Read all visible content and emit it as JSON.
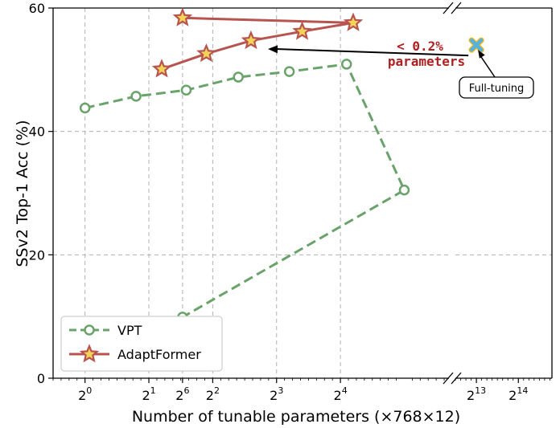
{
  "chart_data": {
    "type": "line",
    "xlabel": "Number of tunable parameters (×768×12)",
    "ylabel": "SSv2 Top-1 Acc (%)",
    "ylim": [
      0,
      60
    ],
    "yticks": [
      0,
      20,
      40,
      60
    ],
    "xlim_log2_main": [
      -0.5,
      5.7
    ],
    "xlim_log2_broken": [
      12.5,
      14.8
    ],
    "xticks_main": [
      {
        "base": "2",
        "exp": "0"
      },
      {
        "base": "2",
        "exp": "1"
      },
      {
        "base": "2",
        "exp": "2"
      },
      {
        "base": "2",
        "exp": "3"
      },
      {
        "base": "2",
        "exp": "4"
      },
      {
        "base": "2",
        "exp": "6"
      }
    ],
    "xticks_broken": [
      {
        "base": "2",
        "exp": "13"
      },
      {
        "base": "2",
        "exp": "14"
      }
    ],
    "grid": true,
    "legend_position": "lower-left",
    "series": [
      {
        "name": "VPT",
        "color": "#6aa36a",
        "marker": "circle",
        "linestyle": "dashed",
        "points": [
          {
            "x": 1.0,
            "y": 43.8
          },
          {
            "x": 1.74,
            "y": 45.7
          },
          {
            "x": 3.0,
            "y": 46.7
          },
          {
            "x": 5.28,
            "y": 48.8
          },
          {
            "x": 9.19,
            "y": 49.7
          },
          {
            "x": 17.1,
            "y": 50.9
          },
          {
            "x": 32.0,
            "y": 30.5
          },
          {
            "x": 64.0,
            "y": 9.9
          }
        ]
      },
      {
        "name": "AdaptFormer",
        "color": "#b85450",
        "marker": "star",
        "linestyle": "solid",
        "points": [
          {
            "x": 2.3,
            "y": 50.1
          },
          {
            "x": 3.73,
            "y": 52.6
          },
          {
            "x": 6.06,
            "y": 54.7
          },
          {
            "x": 10.56,
            "y": 56.2
          },
          {
            "x": 18.38,
            "y": 57.6
          },
          {
            "x": 64.0,
            "y": 58.4
          }
        ]
      },
      {
        "name": "Full-tuning",
        "color": "#4fb3e8",
        "marker": "x",
        "points": [
          {
            "x": 8192,
            "y": 54.0
          }
        ]
      }
    ],
    "annotations": [
      {
        "text_line1": "< 0.2%",
        "text_line2": "parameters",
        "color": "#b02020"
      },
      {
        "text": "Full-tuning",
        "boxed": true
      }
    ]
  }
}
